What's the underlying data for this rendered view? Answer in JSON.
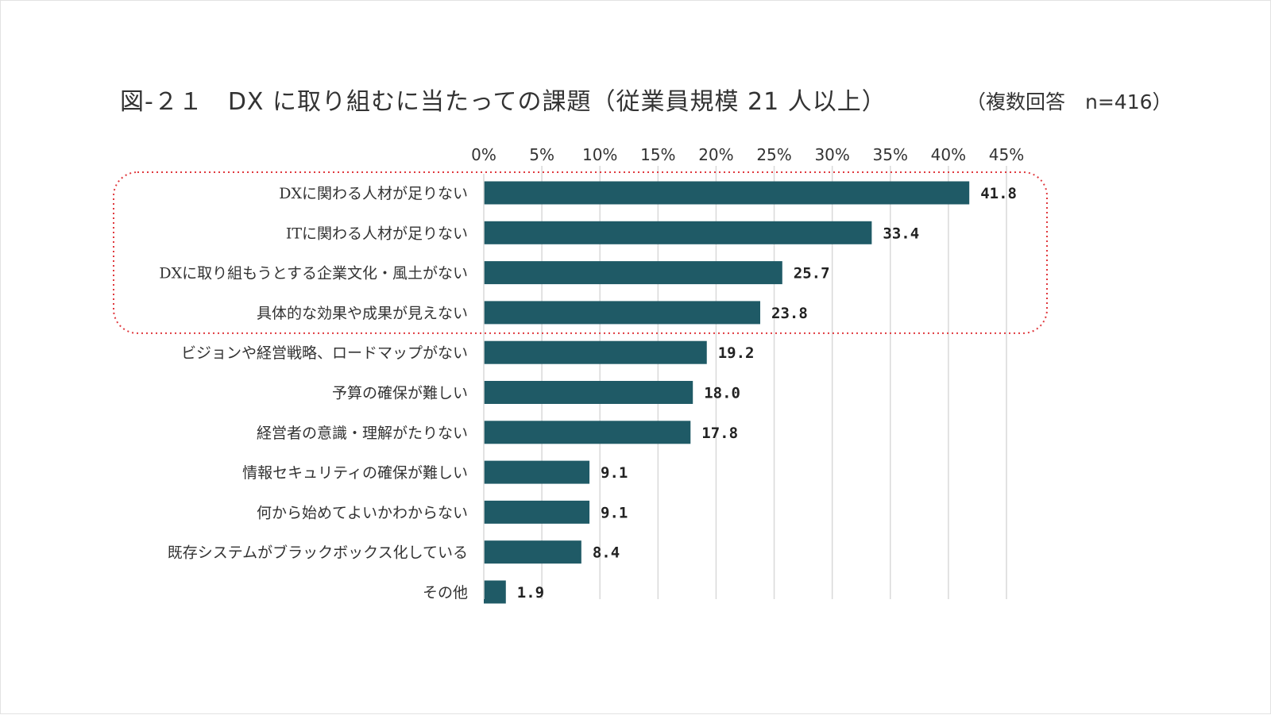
{
  "title": "図-２１　DX に取り組むに当たっての課題（従業員規模 21 人以上）",
  "subtitle": "（複数回答　n=416）",
  "colors": {
    "bar": "#1f5a66",
    "grid": "#d9d9d9",
    "highlight": "#e0393e"
  },
  "chart_data": {
    "type": "bar",
    "orientation": "horizontal",
    "categories": [
      "DXに関わる人材が足りない",
      "ITに関わる人材が足りない",
      "DXに取り組もうとする企業文化・風土がない",
      "具体的な効果や成果が見えない",
      "ビジョンや経営戦略、ロードマップがない",
      "予算の確保が難しい",
      "経営者の意識・理解がたりない",
      "情報セキュリティの確保が難しい",
      "何から始めてよいかわからない",
      "既存システムがブラックボックス化している",
      "その他"
    ],
    "values": [
      41.8,
      33.4,
      25.7,
      23.8,
      19.2,
      18.0,
      17.8,
      9.1,
      9.1,
      8.4,
      1.9
    ],
    "value_labels": [
      "41.8",
      "33.4",
      "25.7",
      "23.8",
      "19.2",
      "18.0",
      "17.8",
      "9.1",
      "9.1",
      "8.4",
      "1.9"
    ],
    "xlim": [
      0,
      45
    ],
    "ticks": [
      0,
      5,
      10,
      15,
      20,
      25,
      30,
      35,
      40,
      45
    ],
    "tick_labels": [
      "0%",
      "5%",
      "10%",
      "15%",
      "20%",
      "25%",
      "30%",
      "35%",
      "40%",
      "45%"
    ],
    "axis_position": "top",
    "grid": true,
    "highlighted_categories": [
      0,
      1,
      2,
      3
    ]
  }
}
